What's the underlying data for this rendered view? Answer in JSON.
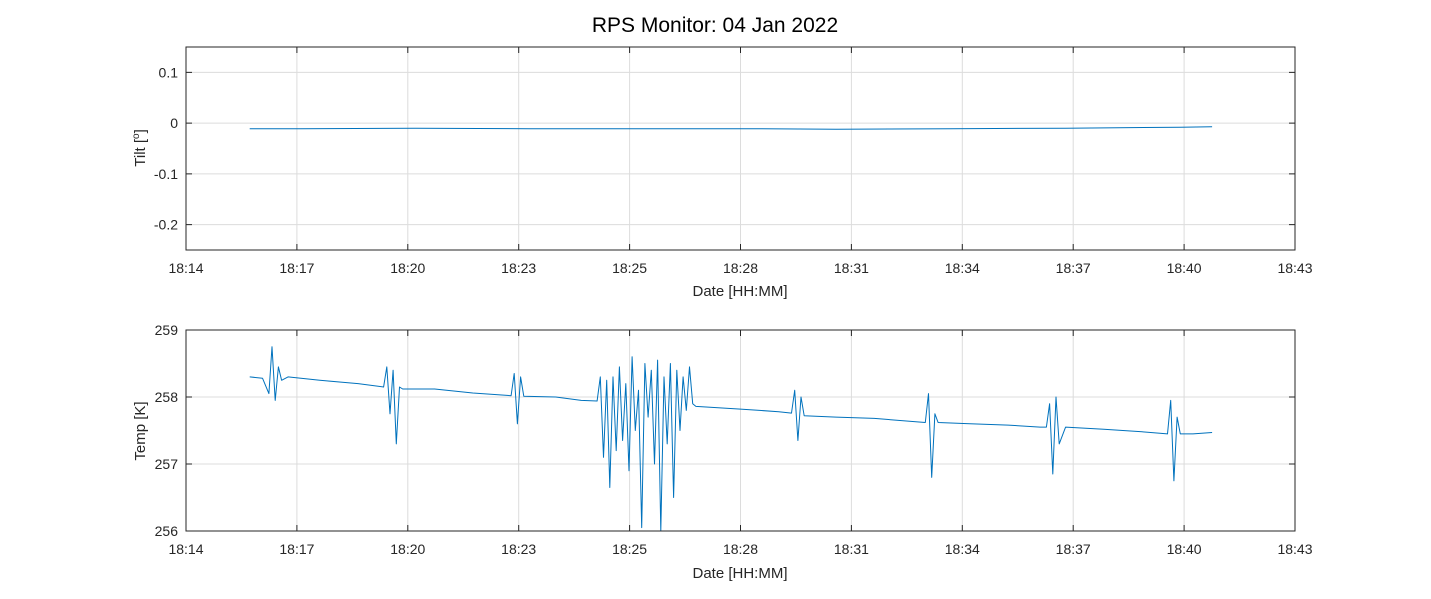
{
  "figure": {
    "title": "RPS Monitor: 04 Jan 2022",
    "line_color": "#0072BD",
    "grid_color": "#dcdcdc",
    "axes_color": "#262626"
  },
  "chart_data": [
    {
      "type": "line",
      "title": "",
      "xlabel": "Date [HH:MM]",
      "ylabel": "Tilt [°]",
      "ylabel_main": "Tilt [",
      "ylabel_sup": "o",
      "ylabel_end": "]",
      "grid": true,
      "xlim": [
        "18:14",
        "18:43"
      ],
      "ylim": [
        -0.25,
        0.15
      ],
      "xticks": [
        "18:14",
        "18:17",
        "18:20",
        "18:23",
        "18:25",
        "18:28",
        "18:31",
        "18:34",
        "18:37",
        "18:40",
        "18:43"
      ],
      "yticks": [
        -0.2,
        -0.1,
        0,
        0.1
      ],
      "ytick_labels": [
        "-0.2",
        "-0.1",
        "0",
        "0.1"
      ],
      "series": [
        {
          "x": [
            "18:15:40",
            "18:17:00",
            "18:20:00",
            "18:23:00",
            "18:26:00",
            "18:29:00",
            "18:31:00",
            "18:34:00",
            "18:37:00",
            "18:40:00",
            "18:40:50"
          ],
          "y": [
            -0.011,
            -0.011,
            -0.01,
            -0.011,
            -0.011,
            -0.011,
            -0.012,
            -0.011,
            -0.01,
            -0.008,
            -0.007
          ]
        }
      ]
    },
    {
      "type": "line",
      "title": "",
      "xlabel": "Date [HH:MM]",
      "ylabel": "Temp [K]",
      "grid": true,
      "xlim": [
        "18:14",
        "18:43"
      ],
      "ylim": [
        256,
        259
      ],
      "xticks": [
        "18:14",
        "18:17",
        "18:20",
        "18:23",
        "18:25",
        "18:28",
        "18:31",
        "18:34",
        "18:37",
        "18:40",
        "18:43"
      ],
      "yticks": [
        256,
        257,
        258,
        259
      ],
      "ytick_labels": [
        "256",
        "257",
        "258",
        "259"
      ],
      "series": [
        {
          "x": [
            "18:15:40",
            "18:16:00",
            "18:16:10",
            "18:16:15",
            "18:16:20",
            "18:16:25",
            "18:16:30",
            "18:16:40",
            "18:17:30",
            "18:18:30",
            "18:19:10",
            "18:19:15",
            "18:19:20",
            "18:19:25",
            "18:19:30",
            "18:19:35",
            "18:19:40",
            "18:20:30",
            "18:21:30",
            "18:22:30",
            "18:22:35",
            "18:22:40",
            "18:22:45",
            "18:22:50",
            "18:23:40",
            "18:24:20",
            "18:24:45",
            "18:24:50",
            "18:24:55",
            "18:25:00",
            "18:25:05",
            "18:25:10",
            "18:25:15",
            "18:25:20",
            "18:25:25",
            "18:25:30",
            "18:25:35",
            "18:25:40",
            "18:25:45",
            "18:25:50",
            "18:25:55",
            "18:26:00",
            "18:26:05",
            "18:26:10",
            "18:26:15",
            "18:26:20",
            "18:26:25",
            "18:26:30",
            "18:26:35",
            "18:26:40",
            "18:26:45",
            "18:26:50",
            "18:26:55",
            "18:27:00",
            "18:27:05",
            "18:27:10",
            "18:27:15",
            "18:27:20",
            "18:28:30",
            "18:29:00",
            "18:29:30",
            "18:29:50",
            "18:29:55",
            "18:30:00",
            "18:30:05",
            "18:30:10",
            "18:31:00",
            "18:32:00",
            "18:33:20",
            "18:33:25",
            "18:33:30",
            "18:33:35",
            "18:33:40",
            "18:34:30",
            "18:35:30",
            "18:36:20",
            "18:36:30",
            "18:36:35",
            "18:36:40",
            "18:36:45",
            "18:36:50",
            "18:37:00",
            "18:38:00",
            "18:39:00",
            "18:39:40",
            "18:39:45",
            "18:39:50",
            "18:39:55",
            "18:40:00",
            "18:40:20",
            "18:40:50"
          ],
          "y": [
            258.3,
            258.28,
            258.05,
            258.75,
            257.95,
            258.45,
            258.25,
            258.3,
            258.25,
            258.2,
            258.15,
            258.45,
            257.75,
            258.4,
            257.3,
            258.15,
            258.12,
            258.12,
            258.06,
            258.02,
            258.35,
            257.6,
            258.3,
            258.01,
            258.0,
            257.95,
            257.94,
            258.3,
            257.1,
            258.25,
            256.65,
            258.3,
            257.2,
            258.45,
            257.35,
            258.2,
            256.9,
            258.6,
            257.5,
            258.1,
            256.05,
            258.5,
            257.7,
            258.4,
            257.0,
            258.55,
            256.0,
            258.3,
            257.3,
            258.5,
            256.5,
            258.4,
            257.5,
            258.3,
            257.8,
            258.45,
            257.9,
            257.86,
            257.82,
            257.8,
            257.78,
            257.76,
            258.1,
            257.35,
            258.0,
            257.72,
            257.7,
            257.68,
            257.62,
            258.05,
            256.8,
            257.75,
            257.62,
            257.6,
            257.58,
            257.55,
            257.55,
            257.9,
            256.85,
            258.0,
            257.3,
            257.55,
            257.52,
            257.48,
            257.45,
            257.95,
            256.75,
            257.7,
            257.45,
            257.45,
            257.47
          ]
        }
      ]
    }
  ]
}
